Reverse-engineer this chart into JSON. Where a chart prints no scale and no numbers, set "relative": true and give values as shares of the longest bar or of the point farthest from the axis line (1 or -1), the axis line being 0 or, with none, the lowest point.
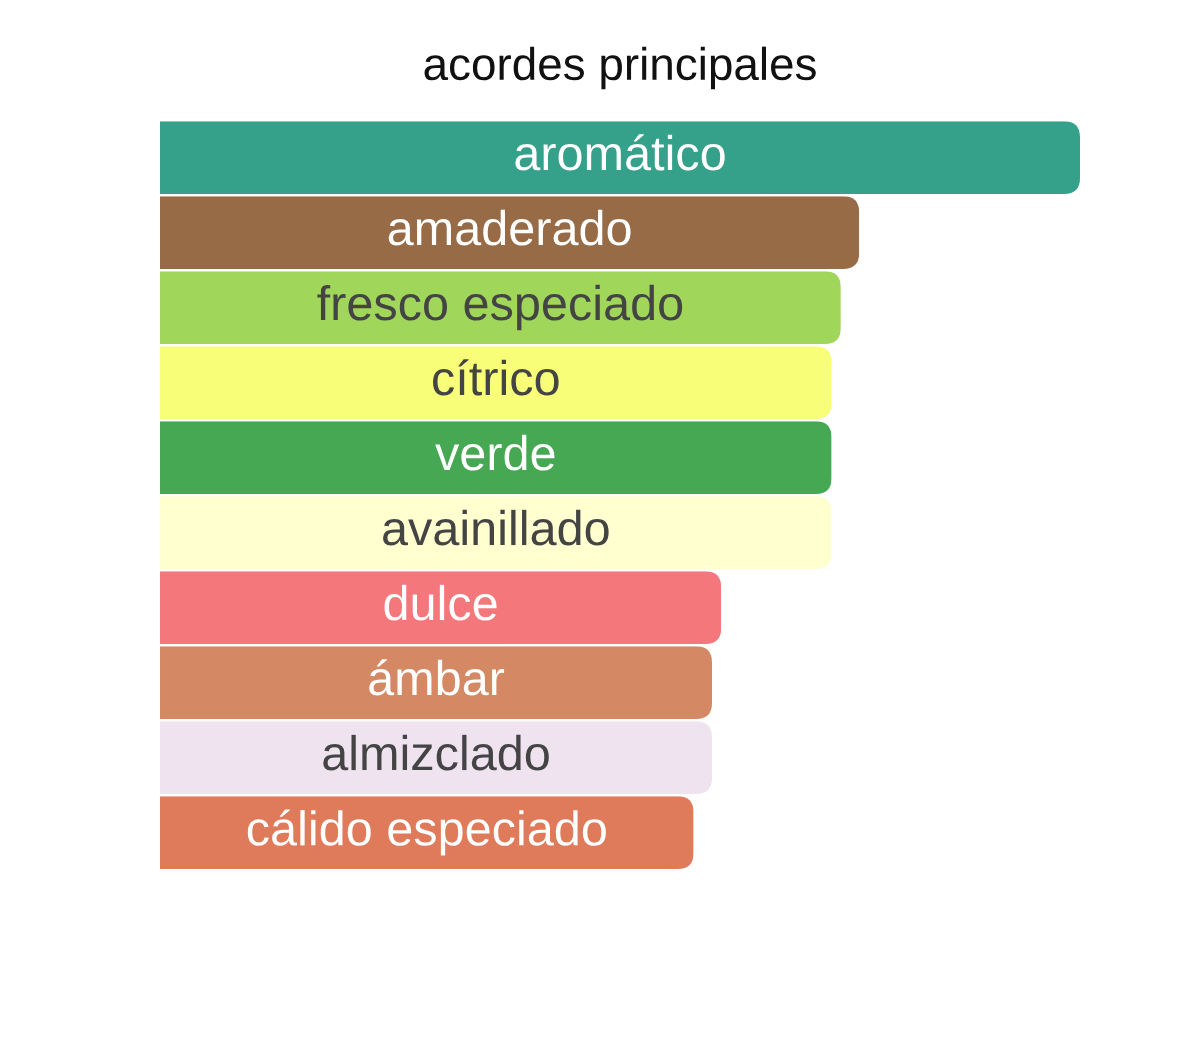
{
  "chart_data": {
    "type": "bar",
    "orientation": "horizontal",
    "relative": true,
    "title": "acordes principales",
    "categories": [
      "aromático",
      "amaderado",
      "fresco especiado",
      "cítrico",
      "verde",
      "avainillado",
      "dulce",
      "ámbar",
      "almizclado",
      "cálido especiado"
    ],
    "values": [
      1,
      0.76,
      0.74,
      0.73,
      0.73,
      0.73,
      0.61,
      0.6,
      0.6,
      0.58
    ],
    "colors": [
      "#36a18b",
      "#976b46",
      "#a0d65a",
      "#f9fe78",
      "#46a852",
      "#ffffcf",
      "#f3777b",
      "#d48864",
      "#eee3ef",
      "#df7a5a"
    ]
  }
}
